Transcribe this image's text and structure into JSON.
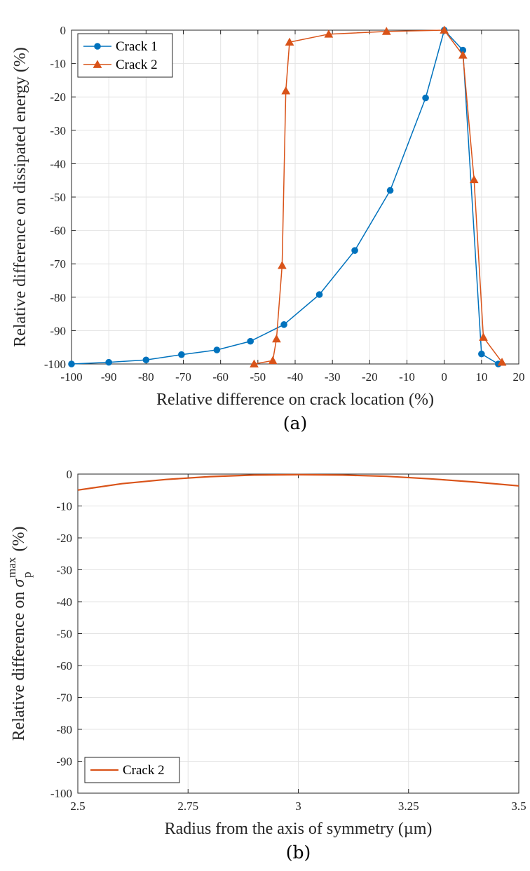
{
  "colors": {
    "crack1": "#0072BD",
    "crack2": "#D95319",
    "grid": "#e3e3e3",
    "axis": "#262626"
  },
  "chart_data": [
    {
      "type": "line",
      "caption": "(a)",
      "xlabel": "Relative difference on crack location (%)",
      "ylabel": "Relative difference on dissipated energy (%)",
      "xlim": [
        -100,
        20
      ],
      "ylim": [
        -100,
        0
      ],
      "xticks": [
        -100,
        -90,
        -80,
        -70,
        -60,
        -50,
        -40,
        -30,
        -20,
        -10,
        0,
        10,
        20
      ],
      "yticks": [
        0,
        -10,
        -20,
        -30,
        -40,
        -50,
        -60,
        -70,
        -80,
        -90,
        -100
      ],
      "grid": true,
      "legend_position": "top-left",
      "series": [
        {
          "name": "Crack 1",
          "marker": "circle",
          "color": "#0072BD",
          "x": [
            -100,
            -90,
            -80,
            -70.5,
            -61,
            -52,
            -43,
            -33.5,
            -24,
            -14.5,
            -5,
            0,
            5,
            10,
            14.5
          ],
          "y": [
            -100,
            -99.5,
            -98.8,
            -97.2,
            -95.8,
            -93.2,
            -88.2,
            -79.2,
            -66,
            -48,
            -20.3,
            0,
            -6,
            -97,
            -100
          ]
        },
        {
          "name": "Crack 2",
          "marker": "triangle",
          "color": "#D95319",
          "x": [
            -51,
            -46,
            -45,
            -43.5,
            -42.5,
            -41.5,
            -31,
            -15.5,
            0,
            5,
            8,
            10.5,
            15.5
          ],
          "y": [
            -100,
            -99,
            -92.5,
            -70.5,
            -18.2,
            -3.6,
            -1.2,
            -0.4,
            0,
            -7.5,
            -44.8,
            -92,
            -99.5
          ]
        }
      ]
    },
    {
      "type": "line",
      "caption": "(b)",
      "xlabel": "Radius from the axis of symmetry (µm)",
      "ylabel": "Relative difference on σ_p^max (%)",
      "ylabel_parts": {
        "pre": "Relative difference on ",
        "sigma": "σ",
        "sub": "p",
        "sup": "max",
        "post": " (%)"
      },
      "xlim": [
        2.5,
        3.5
      ],
      "ylim": [
        -100,
        0
      ],
      "xticks": [
        2.5,
        2.75,
        3,
        3.25,
        3.5
      ],
      "xtick_labels": [
        "2.5",
        "2.75",
        "3",
        "3.25",
        "3.5"
      ],
      "yticks": [
        0,
        -10,
        -20,
        -30,
        -40,
        -50,
        -60,
        -70,
        -80,
        -90,
        -100
      ],
      "grid": true,
      "legend_position": "bottom-left",
      "series": [
        {
          "name": "Crack 2",
          "marker": "none",
          "color": "#D95319",
          "x": [
            2.5,
            2.6,
            2.7,
            2.8,
            2.9,
            3.0,
            3.1,
            3.2,
            3.3,
            3.4,
            3.5
          ],
          "y": [
            -5,
            -3,
            -1.7,
            -0.8,
            -0.3,
            -0.2,
            -0.3,
            -0.7,
            -1.5,
            -2.5,
            -3.7
          ]
        }
      ]
    }
  ]
}
